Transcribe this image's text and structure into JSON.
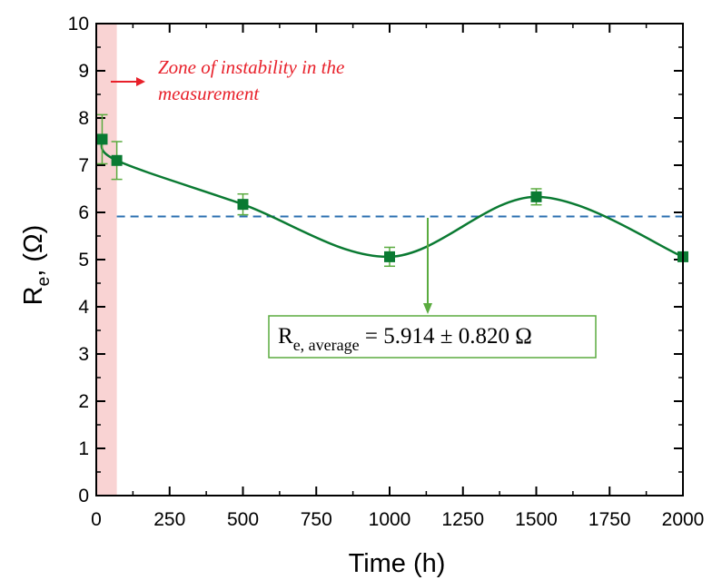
{
  "chart_data": {
    "type": "scatter",
    "title": "",
    "xlabel": "Time (h)",
    "ylabel": {
      "main": "R",
      "sub": "e",
      "rest": ", (Ω)"
    },
    "xlim": [
      0,
      2000
    ],
    "ylim": [
      0,
      10
    ],
    "xticks": [
      "0",
      "250",
      "500",
      "750",
      "1000",
      "1250",
      "1500",
      "1750",
      "2000"
    ],
    "yticks": [
      "0",
      "1",
      "2",
      "3",
      "4",
      "5",
      "6",
      "7",
      "8",
      "9",
      "10"
    ],
    "grid": false,
    "series": [
      {
        "points": [
          {
            "x": 20,
            "y": 7.55,
            "err": 0.52
          },
          {
            "x": 70,
            "y": 7.1,
            "err": 0.4
          },
          {
            "x": 500,
            "y": 6.17,
            "err": 0.22
          },
          {
            "x": 1000,
            "y": 5.06,
            "err": 0.2
          },
          {
            "x": 1500,
            "y": 6.33,
            "err": 0.17
          },
          {
            "x": 2000,
            "y": 5.06,
            "err": 0.0
          }
        ],
        "color": "#0a7a32",
        "smooth_curve": true
      }
    ],
    "reference_line": {
      "y": 5.914,
      "style": "dashed",
      "color": "#2a6fb0"
    },
    "shaded_zone": {
      "x_start": 0,
      "x_end": 70,
      "color": "#f9d3d3"
    },
    "annotations": {
      "instability_line1": "Zone of instability in the",
      "instability_line2": "measurement",
      "average_main": "R",
      "average_sub": "e, average",
      "average_value": " = 5.914 ± 0.820 Ω",
      "red_color": "#e8202a",
      "green_color": "#5aab3f"
    }
  }
}
